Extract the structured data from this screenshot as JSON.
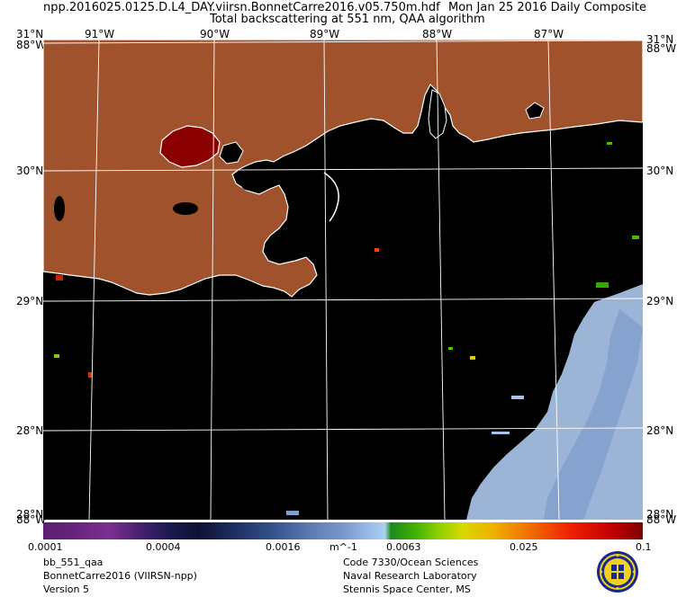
{
  "header": {
    "filename": "npp.2016025.0125.D.L4_DAY.viirsn.BonnetCarre2016.v05.750m.hdf",
    "date": "Mon Jan 25 2016 Daily Composite",
    "subtitle": "Total backscattering at 551 nm, QAA algorithm"
  },
  "map": {
    "lon_labels_top": [
      "91°W",
      "90°W",
      "89°W",
      "88°W",
      "87°W"
    ],
    "lat_labels_left": [
      "31°N",
      "30°N",
      "29°N",
      "28°N",
      "28°N"
    ],
    "lat_labels_right": [
      "31°N",
      "30°N",
      "29°N",
      "28°N",
      "28°N"
    ],
    "corner_lon_left_top": "88°W",
    "corner_lon_right_top": "88°W",
    "corner_lon_left_bottom": "88°W",
    "corner_lon_right_bottom": "88°W",
    "colors": {
      "land": "#a0522d",
      "water": "#000000",
      "coast": "#ffffff",
      "lake": "#8b0000",
      "offshore": "#a9c4e8"
    }
  },
  "colorbar": {
    "labels": [
      "0.0001",
      "0.0004",
      "0.0016",
      "0.0063",
      "0.025",
      "0.1"
    ],
    "units": "m^-1"
  },
  "footer": {
    "left": [
      "bb_551_qaa",
      "BonnetCarre2016 (VIIRSN-npp)",
      "Version 5"
    ],
    "right": [
      "Code 7330/Ocean Sciences",
      "Naval Research Laboratory",
      "Stennis Space Center, MS"
    ]
  }
}
